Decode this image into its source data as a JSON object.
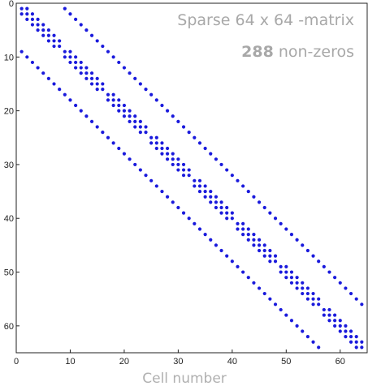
{
  "chart_data": {
    "type": "scatter",
    "title_line1": "Sparse 64 x 64 -matrix",
    "title_count": "288",
    "title_line2_suffix": " non-zeros",
    "xlabel": "Cell number",
    "ylabel": "",
    "xlim": [
      0,
      65
    ],
    "ylim": [
      0,
      65
    ],
    "y_inverted": true,
    "x_ticks": [
      0,
      10,
      20,
      30,
      40,
      50,
      60
    ],
    "y_ticks": [
      0,
      10,
      20,
      30,
      40,
      50,
      60
    ],
    "grid": false,
    "marker_color": "#1a1adc",
    "matrix_size": 64,
    "nonzero_pattern": "5-point stencil on 8x8 grid: entries at column offsets -8, -1, 0, +1, +8 (neighbour links across grid-row boundaries omitted)",
    "nnz": 288
  }
}
